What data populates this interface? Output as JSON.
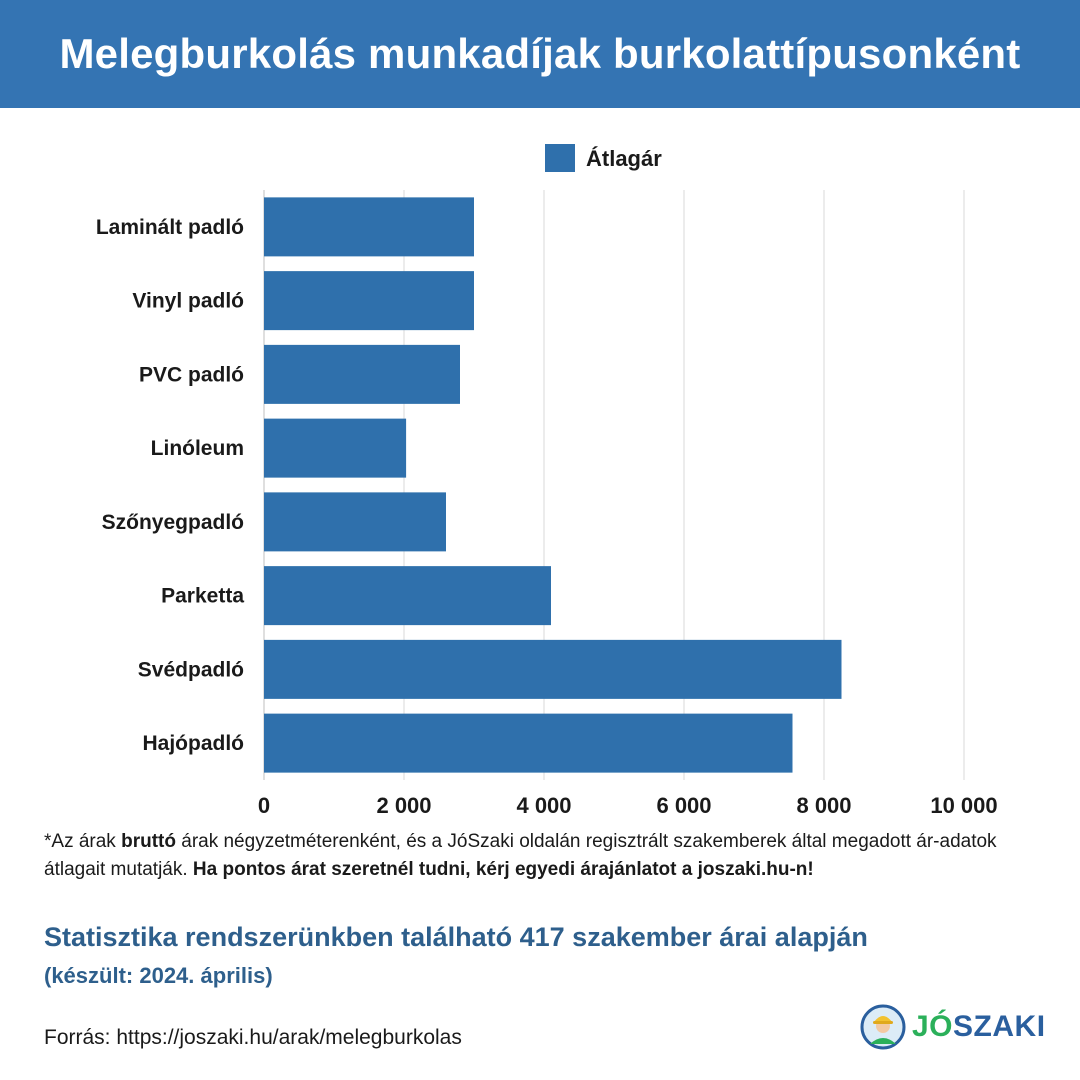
{
  "header": {
    "title": "Melegburkolás munkadíjak burkolattípusonként"
  },
  "chart_data": {
    "type": "bar",
    "orientation": "horizontal",
    "title": "Melegburkolás munkadíjak burkolattípusonként",
    "categories": [
      "Laminált padló",
      "Vinyl padló",
      "PVC padló",
      "Linóleum",
      "Szőnyegpadló",
      "Parketta",
      "Svédpadló",
      "Hajópadló"
    ],
    "series": [
      {
        "name": "Átlagár",
        "values": [
          3000,
          3000,
          2800,
          2030,
          2600,
          4100,
          8250,
          7550
        ],
        "color": "#2f70ac"
      }
    ],
    "x_ticks": [
      "0",
      "2 000",
      "4 000",
      "6 000",
      "8 000",
      "10 000"
    ],
    "xlim": [
      0,
      10000
    ],
    "grid": true,
    "legend_placement": "top-center"
  },
  "footnote": {
    "part1": "*Az árak ",
    "bold1": "bruttó",
    "part2": " árak négyzetméterenként, és a JóSzaki oldalán regisztrált szakemberek által megadott ár-adatok átlagait mutatják. ",
    "bold2": "Ha pontos árat szeretnél tudni, kérj egyedi árajánlatot a joszaki.hu-n!"
  },
  "stat_line": "Statisztika rendszerünkben található 417 szakember árai alapján",
  "date_line": "(készült: 2024. április)",
  "source_line": "Forrás: https://joszaki.hu/arak/melegburkolas",
  "logo": {
    "part1": "JÓ",
    "part2": "SZAKI",
    "icon": "worker-avatar-icon"
  }
}
